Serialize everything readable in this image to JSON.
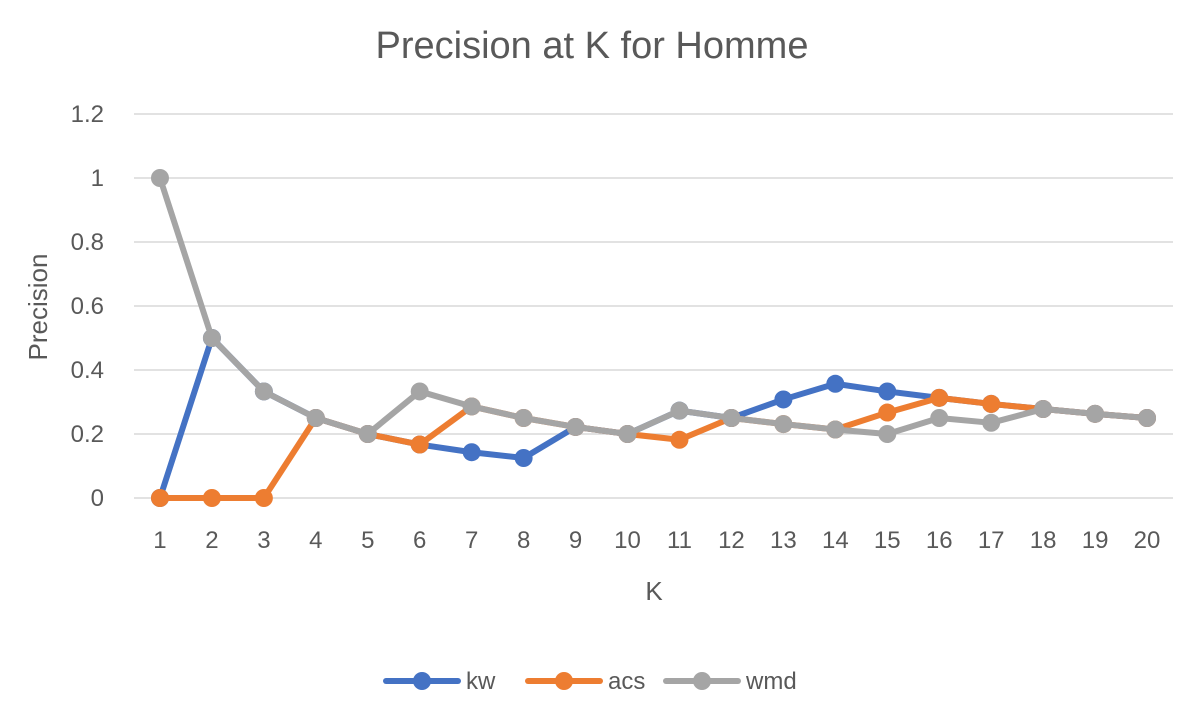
{
  "chart_data": {
    "type": "line",
    "title": "Precision at K for Homme",
    "xlabel": "K",
    "ylabel": "Precision",
    "x": [
      1,
      2,
      3,
      4,
      5,
      6,
      7,
      8,
      9,
      10,
      11,
      12,
      13,
      14,
      15,
      16,
      17,
      18,
      19,
      20
    ],
    "x_tick_labels": [
      "1",
      "2",
      "3",
      "4",
      "5",
      "6",
      "7",
      "8",
      "9",
      "10",
      "11",
      "12",
      "13",
      "14",
      "15",
      "16",
      "17",
      "18",
      "19",
      "20"
    ],
    "ylim": [
      0,
      1.2
    ],
    "y_ticks": [
      0,
      0.2,
      0.4,
      0.6,
      0.8,
      1,
      1.2
    ],
    "y_tick_labels": [
      "0",
      "0.2",
      "0.4",
      "0.6",
      "0.8",
      "1",
      "1.2"
    ],
    "grid": true,
    "legend_position": "bottom",
    "series": [
      {
        "name": "kw",
        "color": "#4472c4",
        "values": [
          0,
          0.5,
          0.333,
          0.25,
          0.2,
          0.167,
          0.143,
          0.125,
          0.222,
          0.2,
          0.273,
          0.25,
          0.308,
          0.357,
          0.333,
          0.313,
          0.294,
          0.278,
          0.263,
          0.25
        ]
      },
      {
        "name": "acs",
        "color": "#ed7d31",
        "values": [
          0,
          0,
          0,
          0.25,
          0.2,
          0.167,
          0.286,
          0.25,
          0.222,
          0.2,
          0.182,
          0.25,
          0.231,
          0.214,
          0.267,
          0.313,
          0.294,
          0.278,
          0.263,
          0.25
        ]
      },
      {
        "name": "wmd",
        "color": "#a5a5a5",
        "values": [
          1,
          0.5,
          0.333,
          0.25,
          0.2,
          0.333,
          0.286,
          0.25,
          0.222,
          0.2,
          0.273,
          0.25,
          0.231,
          0.214,
          0.2,
          0.25,
          0.235,
          0.278,
          0.263,
          0.25
        ]
      }
    ]
  }
}
